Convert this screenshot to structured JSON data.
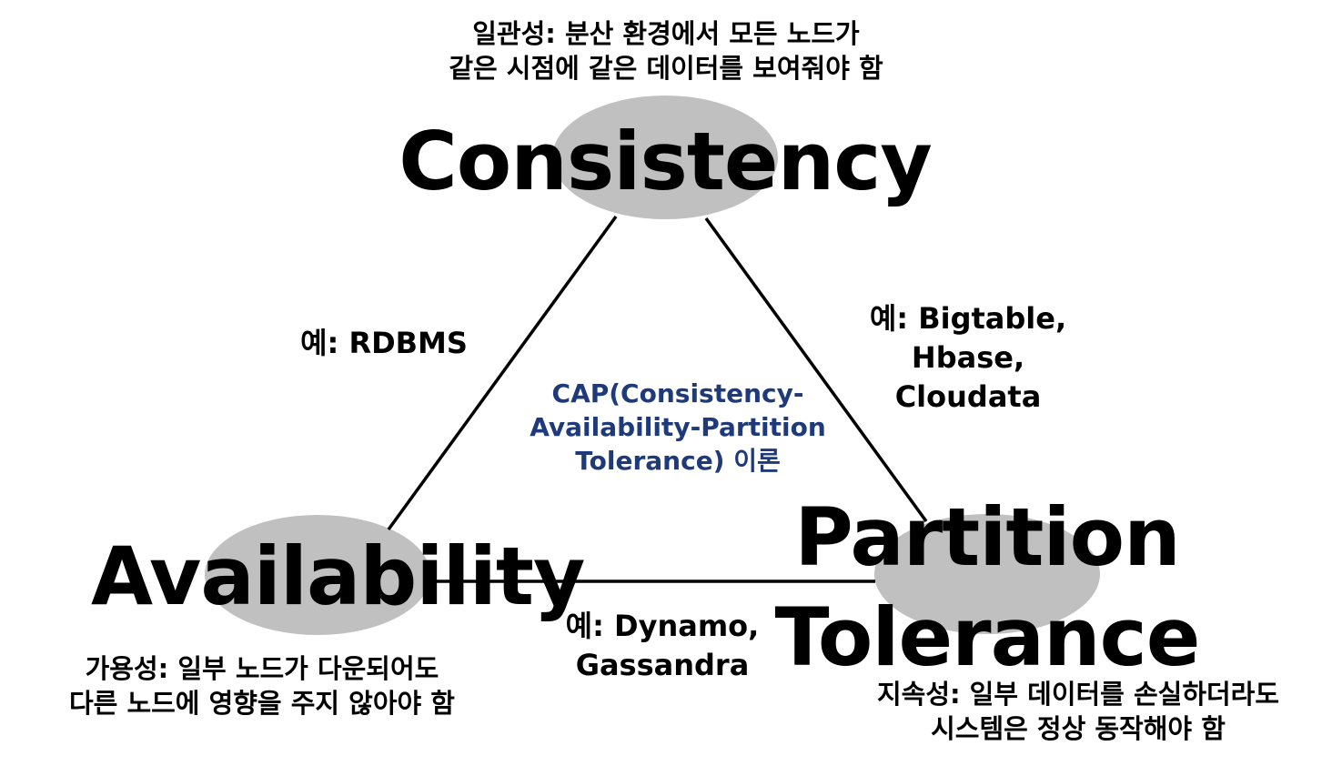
{
  "colors": {
    "ellipse_fill": "#c0c0c0",
    "line_color": "#000000",
    "text_color": "#000000",
    "center_text_color": "#1f3a7a"
  },
  "consistency": {
    "title": "Consistency",
    "desc_line1": "일관성: 분산 환경에서 모든 노드가",
    "desc_line2": "같은 시점에 같은 데이터를 보여줘야 함"
  },
  "availability": {
    "title": "Availability",
    "desc_line1": "가용성: 일부 노드가 다운되어도",
    "desc_line2": "다른 노드에 영향을 주지 않아야 함"
  },
  "partition": {
    "title_line1": "Partition",
    "title_line2": "Tolerance",
    "desc_line1": "지속성: 일부 데이터를 손실하더라도",
    "desc_line2": "시스템은 정상 동작해야 함"
  },
  "examples": {
    "ca": "예: RDBMS",
    "cp_line1": "예: Bigtable,",
    "cp_line2": "Hbase,",
    "cp_line3": "Cloudata",
    "ap_line1": "예: Dynamo,",
    "ap_line2": "Gassandra"
  },
  "center": {
    "line1": "CAP(Consistency-",
    "line2": "Availability-Partition",
    "line3": "Tolerance) 이론"
  }
}
